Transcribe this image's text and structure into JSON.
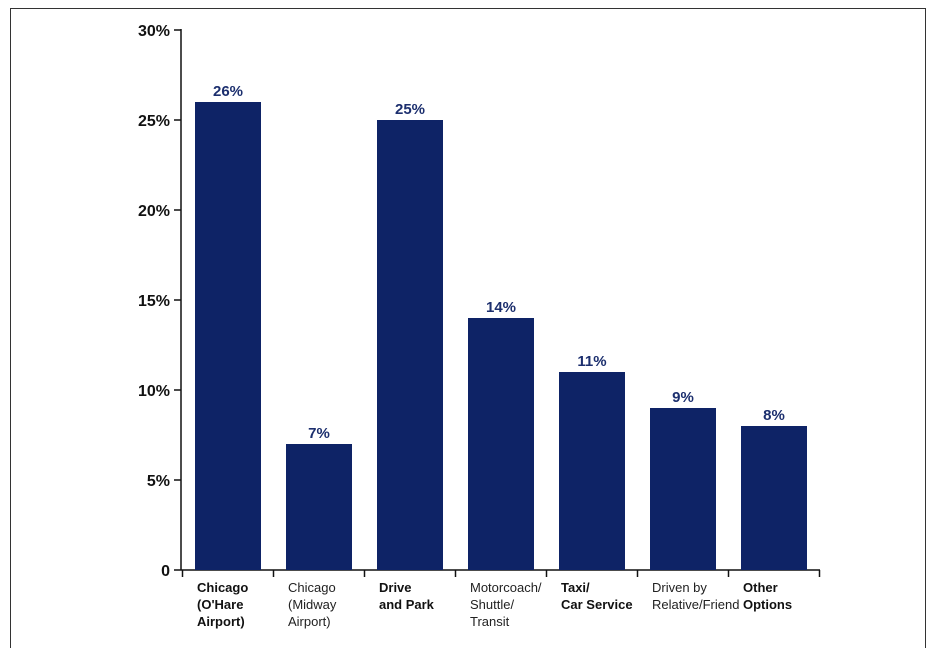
{
  "chart_data": {
    "type": "bar",
    "categories": [
      [
        "Chicago",
        "(O'Hare",
        "Airport)"
      ],
      [
        "Chicago",
        "(Midway",
        "Airport)"
      ],
      [
        "Drive",
        "and Park"
      ],
      [
        "Motorcoach/",
        "Shuttle/",
        "Transit"
      ],
      [
        "Taxi/",
        "Car Service"
      ],
      [
        "Driven by",
        "Relative/Friend"
      ],
      [
        "Other",
        "Options"
      ]
    ],
    "category_bold": [
      true,
      false,
      true,
      false,
      true,
      false,
      true
    ],
    "values": [
      26,
      7,
      25,
      14,
      11,
      9,
      8
    ],
    "value_labels": [
      "26%",
      "7%",
      "25%",
      "14%",
      "11%",
      "9%",
      "8%"
    ],
    "y_ticks": [
      0,
      5,
      10,
      15,
      20,
      25,
      30
    ],
    "y_tick_labels": [
      "0",
      "5%",
      "10%",
      "15%",
      "20%",
      "25%",
      "30%"
    ],
    "ylim": [
      0,
      30
    ],
    "grid": false,
    "bar_color": "#0e2366",
    "value_label_color": "#1c2f6e"
  }
}
